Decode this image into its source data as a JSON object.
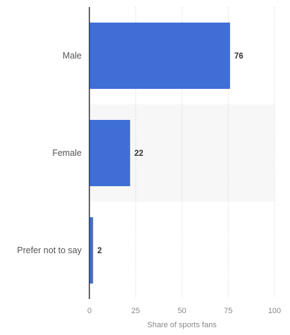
{
  "chart_data": {
    "type": "bar",
    "orientation": "horizontal",
    "categories": [
      "Male",
      "Female",
      "Prefer not to say"
    ],
    "values": [
      76,
      22,
      2
    ],
    "xlabel": "Share of sports fans",
    "ylabel": "",
    "xlim": [
      0,
      100
    ],
    "xticks": [
      "0",
      "25",
      "50",
      "75",
      "100"
    ],
    "grid": "vertical dotted",
    "legend": "none",
    "colors": {
      "bar": "#3f6fd6",
      "band": "#f7f7f7",
      "grid": "#cccccc",
      "axis": "#333333"
    }
  }
}
